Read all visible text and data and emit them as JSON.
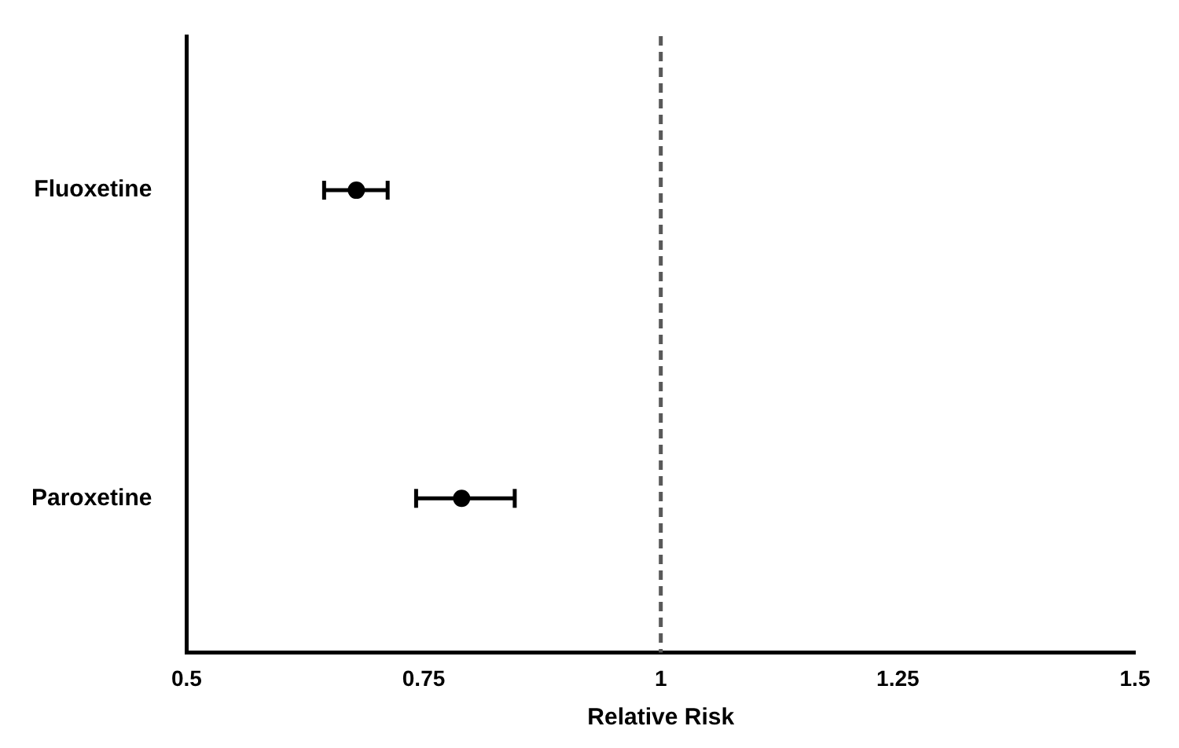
{
  "chart_data": {
    "type": "scatter",
    "orientation": "horizontal",
    "xlabel": "Relative Risk",
    "categories": [
      "Fluoxetine",
      "Paroxetine"
    ],
    "values": [
      0.679,
      0.79
    ],
    "errors": [
      [
        0.645,
        0.712
      ],
      [
        0.742,
        0.846
      ]
    ],
    "color": "#000000",
    "marker": "circle",
    "xlim": [
      0.5,
      1.5
    ],
    "xticks": [
      0.5,
      0.75,
      1,
      1.25,
      1.5
    ],
    "ref_lines": [
      {
        "axis": "x",
        "value": 1,
        "color": "#595959",
        "line_style": "dashed"
      }
    ]
  }
}
